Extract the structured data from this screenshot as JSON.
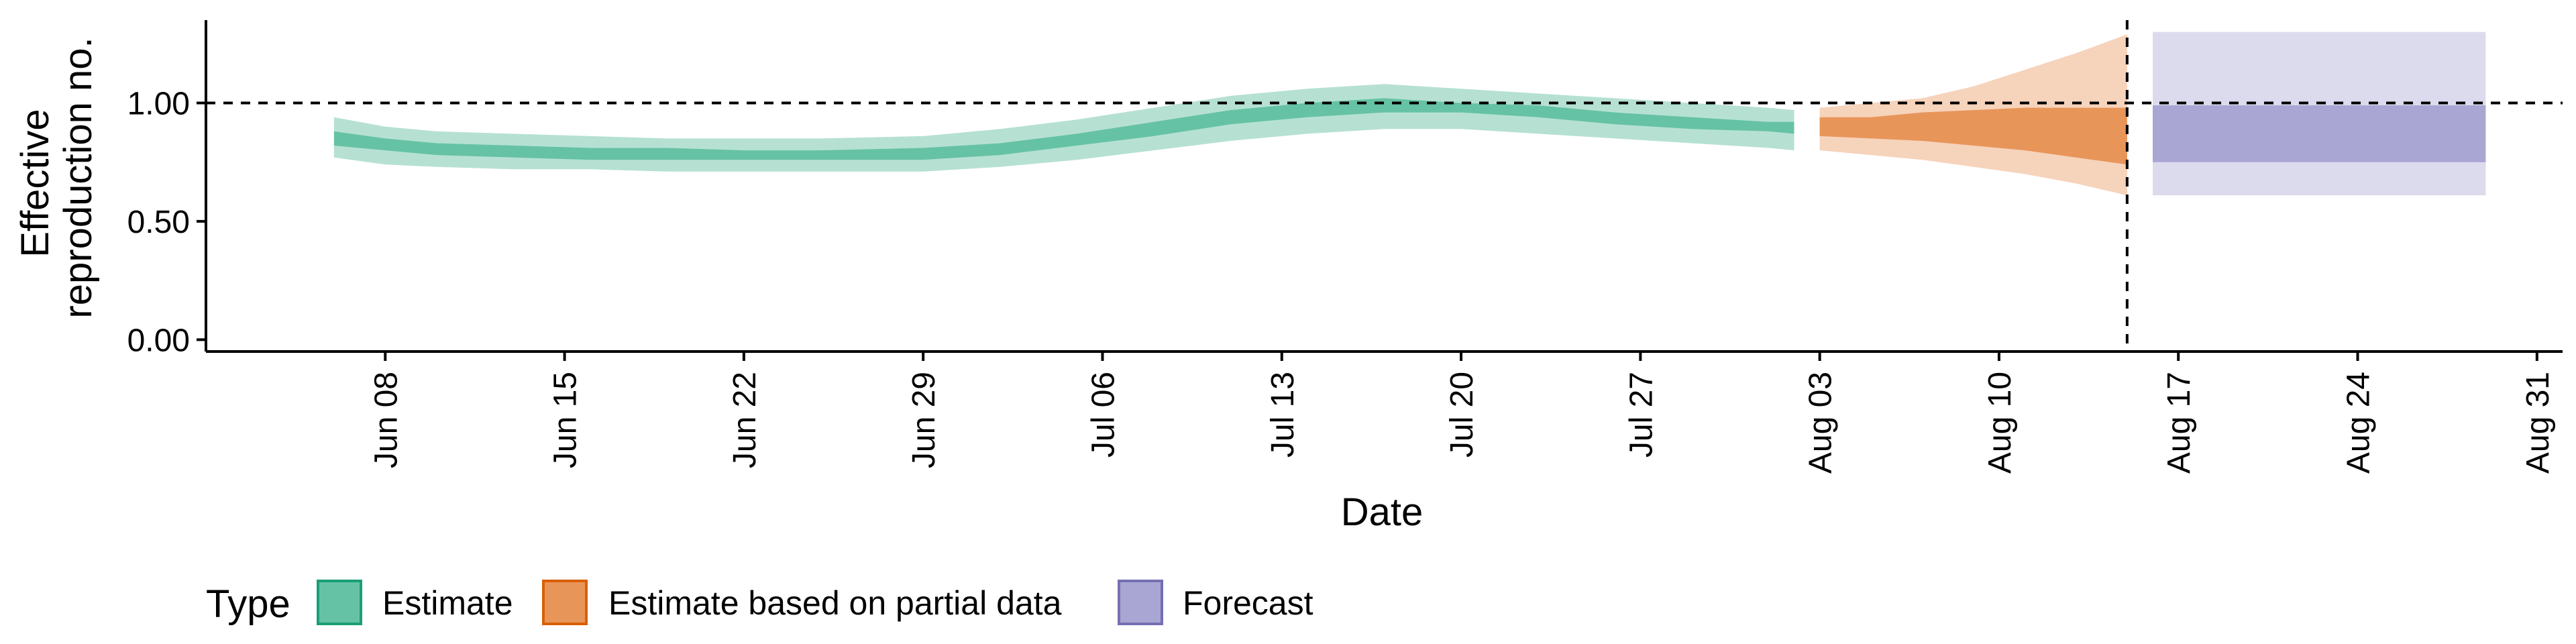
{
  "chart_data": {
    "type": "area",
    "xlabel": "Date",
    "ylabel_lines": [
      "Effective",
      "reproduction no."
    ],
    "ylim": [
      -0.05,
      1.35
    ],
    "y_ticks": [
      0.0,
      0.5,
      1.0
    ],
    "y_tick_labels": [
      "0.00",
      "0.50",
      "1.00"
    ],
    "x_range": [
      "2021-06-01",
      "2021-09-01"
    ],
    "x_ticks": [
      "2021-06-08",
      "2021-06-15",
      "2021-06-22",
      "2021-06-29",
      "2021-07-06",
      "2021-07-13",
      "2021-07-20",
      "2021-07-27",
      "2021-08-03",
      "2021-08-10",
      "2021-08-17",
      "2021-08-24",
      "2021-08-31"
    ],
    "x_tick_labels": [
      "Jun 08",
      "Jun 15",
      "Jun 22",
      "Jun 29",
      "Jul 06",
      "Jul 13",
      "Jul 20",
      "Jul 27",
      "Aug 03",
      "Aug 10",
      "Aug 17",
      "Aug 24",
      "Aug 31"
    ],
    "reference_hline": 1.0,
    "reference_vline": "2021-08-15",
    "legend": {
      "title": "Type",
      "position": "bottom",
      "entries": [
        {
          "label": "Estimate",
          "fill": "#66c2a5",
          "stroke": "#1b9e77"
        },
        {
          "label": "Estimate based on partial data",
          "fill": "#e8955a",
          "stroke": "#d95f02"
        },
        {
          "label": "Forecast",
          "fill": "#a9a6d3",
          "stroke": "#7570b3"
        }
      ]
    },
    "series": [
      {
        "name": "Estimate",
        "color_inner": "#66c2a5",
        "color_outer": "#b6e1d2",
        "x": [
          "2021-06-06",
          "2021-06-08",
          "2021-06-10",
          "2021-06-13",
          "2021-06-16",
          "2021-06-19",
          "2021-06-22",
          "2021-06-25",
          "2021-06-29",
          "2021-07-02",
          "2021-07-05",
          "2021-07-08",
          "2021-07-11",
          "2021-07-14",
          "2021-07-17",
          "2021-07-20",
          "2021-07-23",
          "2021-07-26",
          "2021-07-29",
          "2021-08-01",
          "2021-08-02"
        ],
        "outer_upper": [
          0.94,
          0.9,
          0.88,
          0.87,
          0.86,
          0.85,
          0.85,
          0.85,
          0.86,
          0.89,
          0.93,
          0.98,
          1.03,
          1.06,
          1.08,
          1.06,
          1.04,
          1.02,
          1.0,
          0.98,
          0.97
        ],
        "outer_lower": [
          0.77,
          0.74,
          0.73,
          0.72,
          0.72,
          0.71,
          0.71,
          0.71,
          0.71,
          0.73,
          0.76,
          0.8,
          0.84,
          0.87,
          0.89,
          0.89,
          0.87,
          0.85,
          0.83,
          0.81,
          0.8
        ],
        "inner_upper": [
          0.88,
          0.85,
          0.83,
          0.82,
          0.81,
          0.81,
          0.8,
          0.8,
          0.81,
          0.83,
          0.87,
          0.92,
          0.97,
          1.0,
          1.02,
          1.0,
          0.99,
          0.96,
          0.94,
          0.92,
          0.92
        ],
        "inner_lower": [
          0.82,
          0.8,
          0.78,
          0.77,
          0.76,
          0.76,
          0.76,
          0.76,
          0.76,
          0.78,
          0.82,
          0.86,
          0.91,
          0.94,
          0.96,
          0.96,
          0.94,
          0.91,
          0.89,
          0.88,
          0.87
        ]
      },
      {
        "name": "Estimate based on partial data",
        "color_inner": "#e8955a",
        "color_outer": "#f6d3bb",
        "x": [
          "2021-08-03",
          "2021-08-05",
          "2021-08-07",
          "2021-08-09",
          "2021-08-11",
          "2021-08-13",
          "2021-08-15"
        ],
        "outer_upper": [
          0.98,
          1.0,
          1.02,
          1.07,
          1.14,
          1.21,
          1.29
        ],
        "outer_lower": [
          0.8,
          0.78,
          0.76,
          0.73,
          0.7,
          0.66,
          0.61
        ],
        "inner_upper": [
          0.94,
          0.94,
          0.96,
          0.97,
          0.98,
          0.98,
          0.98
        ],
        "inner_lower": [
          0.86,
          0.85,
          0.84,
          0.82,
          0.8,
          0.77,
          0.74
        ]
      },
      {
        "name": "Forecast",
        "color_inner": "#a9a6d3",
        "color_outer": "#dcdbee",
        "x": [
          "2021-08-16",
          "2021-08-29"
        ],
        "outer_upper": [
          1.3,
          1.3
        ],
        "outer_lower": [
          0.61,
          0.61
        ],
        "inner_upper": [
          0.99,
          0.99
        ],
        "inner_lower": [
          0.75,
          0.75
        ]
      }
    ]
  }
}
